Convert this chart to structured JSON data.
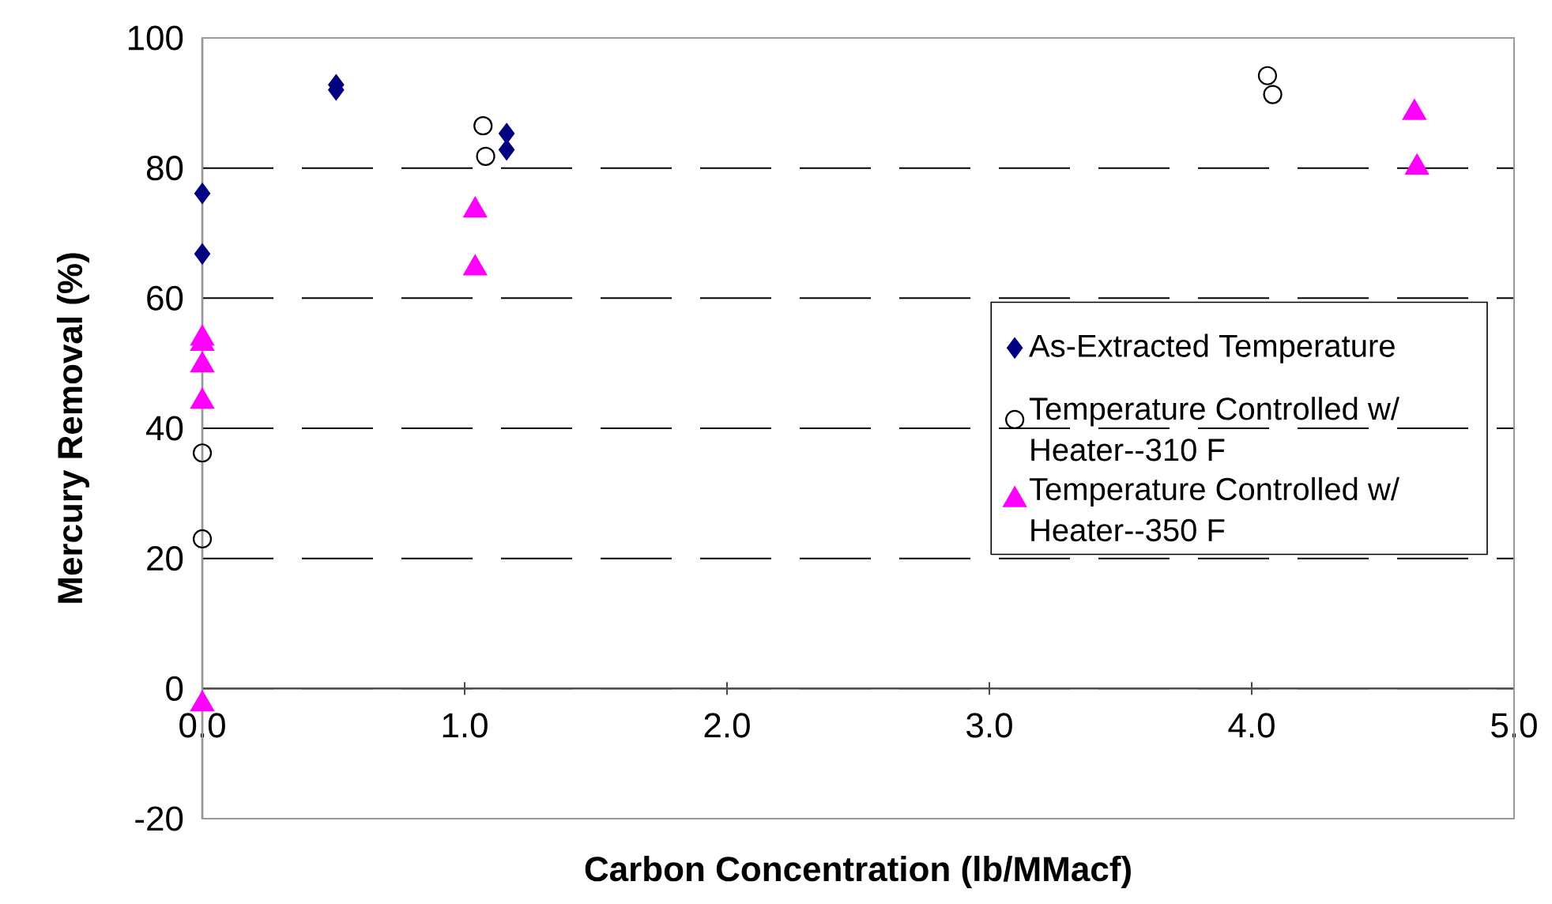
{
  "chart_data": {
    "type": "scatter",
    "xlabel": "Carbon Concentration (lb/MMacf)",
    "ylabel": "Mercury Removal (%)",
    "xlim": [
      0,
      5
    ],
    "ylim": [
      -20,
      100
    ],
    "xticks": [
      {
        "value": 0,
        "label": "0.0"
      },
      {
        "value": 1,
        "label": "1.0"
      },
      {
        "value": 2,
        "label": "2.0"
      },
      {
        "value": 3,
        "label": "3.0"
      },
      {
        "value": 4,
        "label": "4.0"
      },
      {
        "value": 5,
        "label": "5.0"
      }
    ],
    "yticks": [
      -20,
      0,
      20,
      40,
      60,
      80,
      100
    ],
    "grid": "y",
    "legend": "right",
    "series": [
      {
        "name": "As-Extracted Temperature",
        "color": "#000080",
        "marker": "diamond",
        "x": [
          0,
          0,
          0.51,
          0.51,
          1.16,
          1.16
        ],
        "values": [
          76.1,
          66.8,
          92.8,
          92.0,
          85.3,
          82.8
        ]
      },
      {
        "name": "Temperature Controlled w/ Heater--310 F",
        "color": "#000000",
        "marker": "circle",
        "x": [
          1.07,
          1.08,
          0,
          0,
          4.06,
          4.08
        ],
        "values": [
          86.5,
          81.8,
          36.2,
          23.0,
          94.2,
          91.3
        ]
      },
      {
        "name": "Temperature Controlled w/ Heater--350 F",
        "color": "#ff00ff",
        "marker": "triangle",
        "x": [
          0,
          0,
          0,
          0,
          0,
          1.04,
          1.04,
          4.62,
          4.63
        ],
        "values": [
          53.8,
          53.0,
          49.7,
          44.1,
          -2.4,
          73.5,
          64.6,
          88.5,
          80.1
        ]
      }
    ]
  }
}
